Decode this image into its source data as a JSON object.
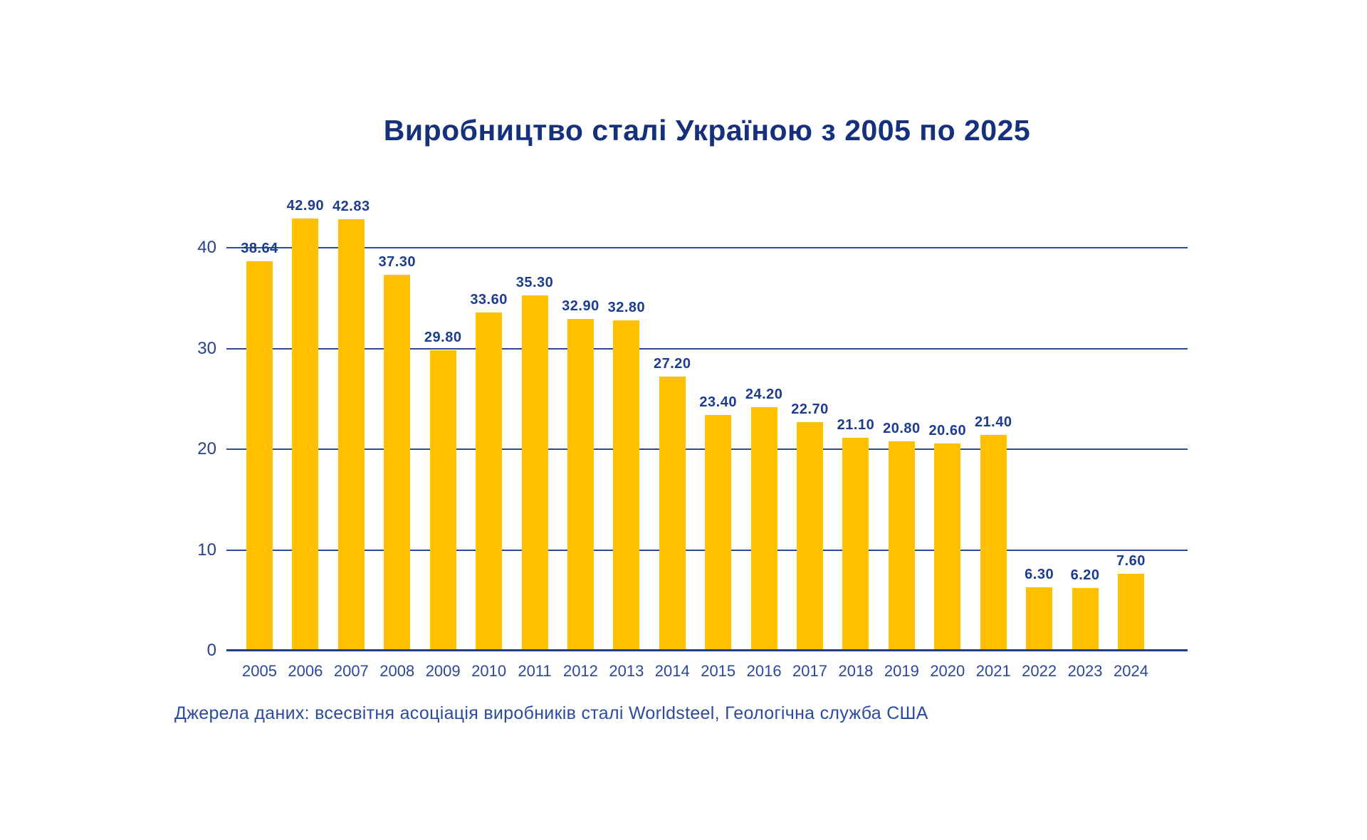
{
  "title": "Виробництво сталі Україною з 2005 по 2025",
  "source_note": "Джерела даних: всесвітня асоціація виробників сталі Worldsteel, Геологічна служба США",
  "chart_data": {
    "type": "bar",
    "title": "Виробництво сталі Україною з 2005 по 2025",
    "categories": [
      "2005",
      "2006",
      "2007",
      "2008",
      "2009",
      "2010",
      "2011",
      "2012",
      "2013",
      "2014",
      "2015",
      "2016",
      "2017",
      "2018",
      "2019",
      "2020",
      "2021",
      "2022",
      "2023",
      "2024"
    ],
    "values": [
      38.64,
      42.9,
      42.83,
      37.3,
      29.8,
      33.6,
      35.3,
      32.9,
      32.8,
      27.2,
      23.4,
      24.2,
      22.7,
      21.1,
      20.8,
      20.6,
      21.4,
      6.3,
      6.2,
      7.6
    ],
    "value_labels": [
      "38.64",
      "42.90",
      "42.83",
      "37.30",
      "29.80",
      "33.60",
      "35.30",
      "32.90",
      "32.80",
      "27.20",
      "23.40",
      "24.20",
      "22.70",
      "21.10",
      "20.80",
      "20.60",
      "21.40",
      "6.30",
      "6.20",
      "7.60"
    ],
    "xlabel": "",
    "ylabel": "",
    "ylim": [
      0,
      43.5
    ],
    "yticks": [
      0,
      10,
      20,
      30,
      40
    ],
    "grid": "horizontal",
    "legend": "none",
    "bar_color": "#ffc000",
    "value_label_color": "#1c3d8f",
    "axis_label_color": "#27418f",
    "gridline_color": "#2e4b9b",
    "title_color": "#15317e",
    "source_color": "#2b4b9e",
    "background_color": "#ffffff"
  }
}
